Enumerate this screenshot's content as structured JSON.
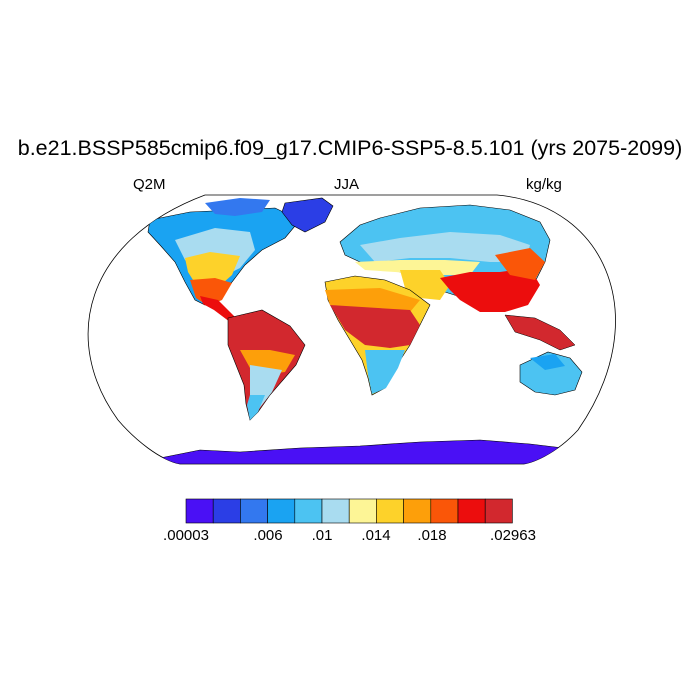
{
  "map": {
    "title": "b.e21.BSSP585cmip6.f09_g17.CMIP6-SSP5-8.5.101 (yrs 2075-2099)",
    "left_label": "Q2M",
    "center_label": "JJA",
    "right_label": "kg/kg"
  },
  "colorbar": {
    "colors": [
      "#4a10f5",
      "#2b3ee6",
      "#3378ef",
      "#1aa3f2",
      "#4cc3f2",
      "#a9dcf0",
      "#fdf596",
      "#fdd22a",
      "#fd9f0a",
      "#fa5608",
      "#ec0d0d",
      "#d2282e"
    ],
    "labels": [
      ".00003",
      ".006",
      ".01",
      ".014",
      ".018",
      ".02963"
    ]
  }
}
